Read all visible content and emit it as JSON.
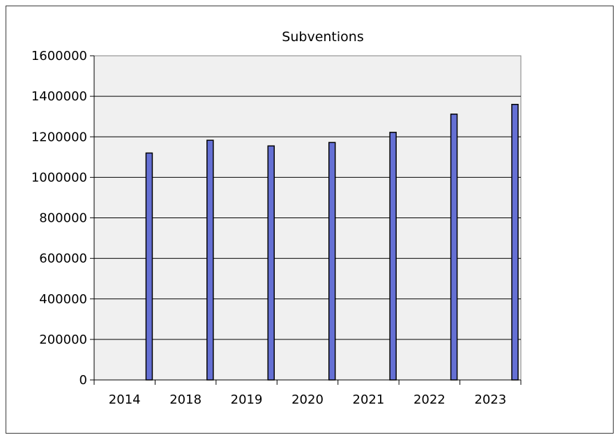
{
  "chart_data": {
    "type": "bar",
    "title": "Subventions",
    "xlabel": "",
    "ylabel": "",
    "categories": [
      "2014",
      "2018",
      "2019",
      "2020",
      "2021",
      "2022",
      "2023"
    ],
    "values": [
      1120000,
      1183000,
      1155000,
      1172000,
      1222000,
      1312000,
      1360000
    ],
    "ylim": [
      0,
      1600000
    ],
    "yticks": [
      0,
      200000,
      400000,
      600000,
      800000,
      1000000,
      1200000,
      1400000,
      1600000
    ],
    "ytick_labels": [
      "0",
      "200000",
      "400000",
      "600000",
      "800000",
      "1000000",
      "1200000",
      "1400000",
      "1600000"
    ],
    "grid": true,
    "legend": "none",
    "colors": {
      "bar_fill": "#6570d4",
      "bar_stroke": "#000000",
      "plot_background": "#f0f0f0",
      "gridline": "#000000",
      "plot_border": "#808080"
    }
  }
}
